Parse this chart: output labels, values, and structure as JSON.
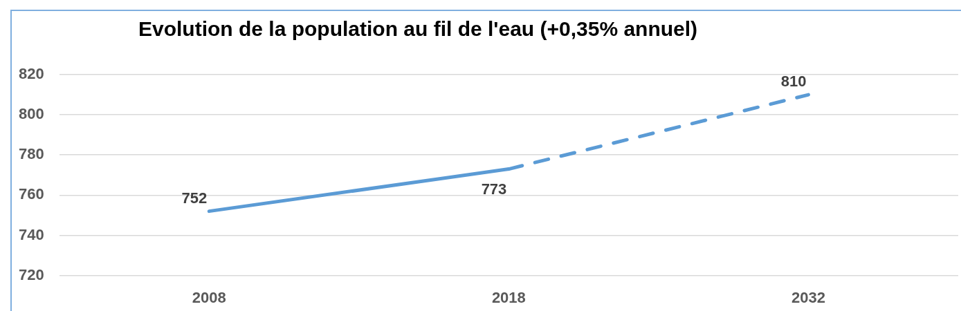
{
  "chart_data": {
    "type": "line",
    "title": "Evolution de la population au fil de l'eau (+0,35% annuel)",
    "categories": [
      "2008",
      "2018",
      "2032"
    ],
    "series": [
      {
        "color": "#5b9bd5",
        "values": [
          752,
          773,
          null
        ],
        "line_style": "solid",
        "value_labels": [
          "752",
          "773",
          null
        ]
      },
      {
        "color": "#5b9bd5",
        "values": [
          null,
          773,
          810
        ],
        "line_style": "dashed",
        "value_labels": [
          null,
          null,
          "810"
        ]
      }
    ],
    "ylim": [
      720,
      820
    ],
    "yticks": [
      720,
      740,
      760,
      780,
      800,
      820
    ],
    "grid": "y",
    "legend": false,
    "marker": "none"
  }
}
